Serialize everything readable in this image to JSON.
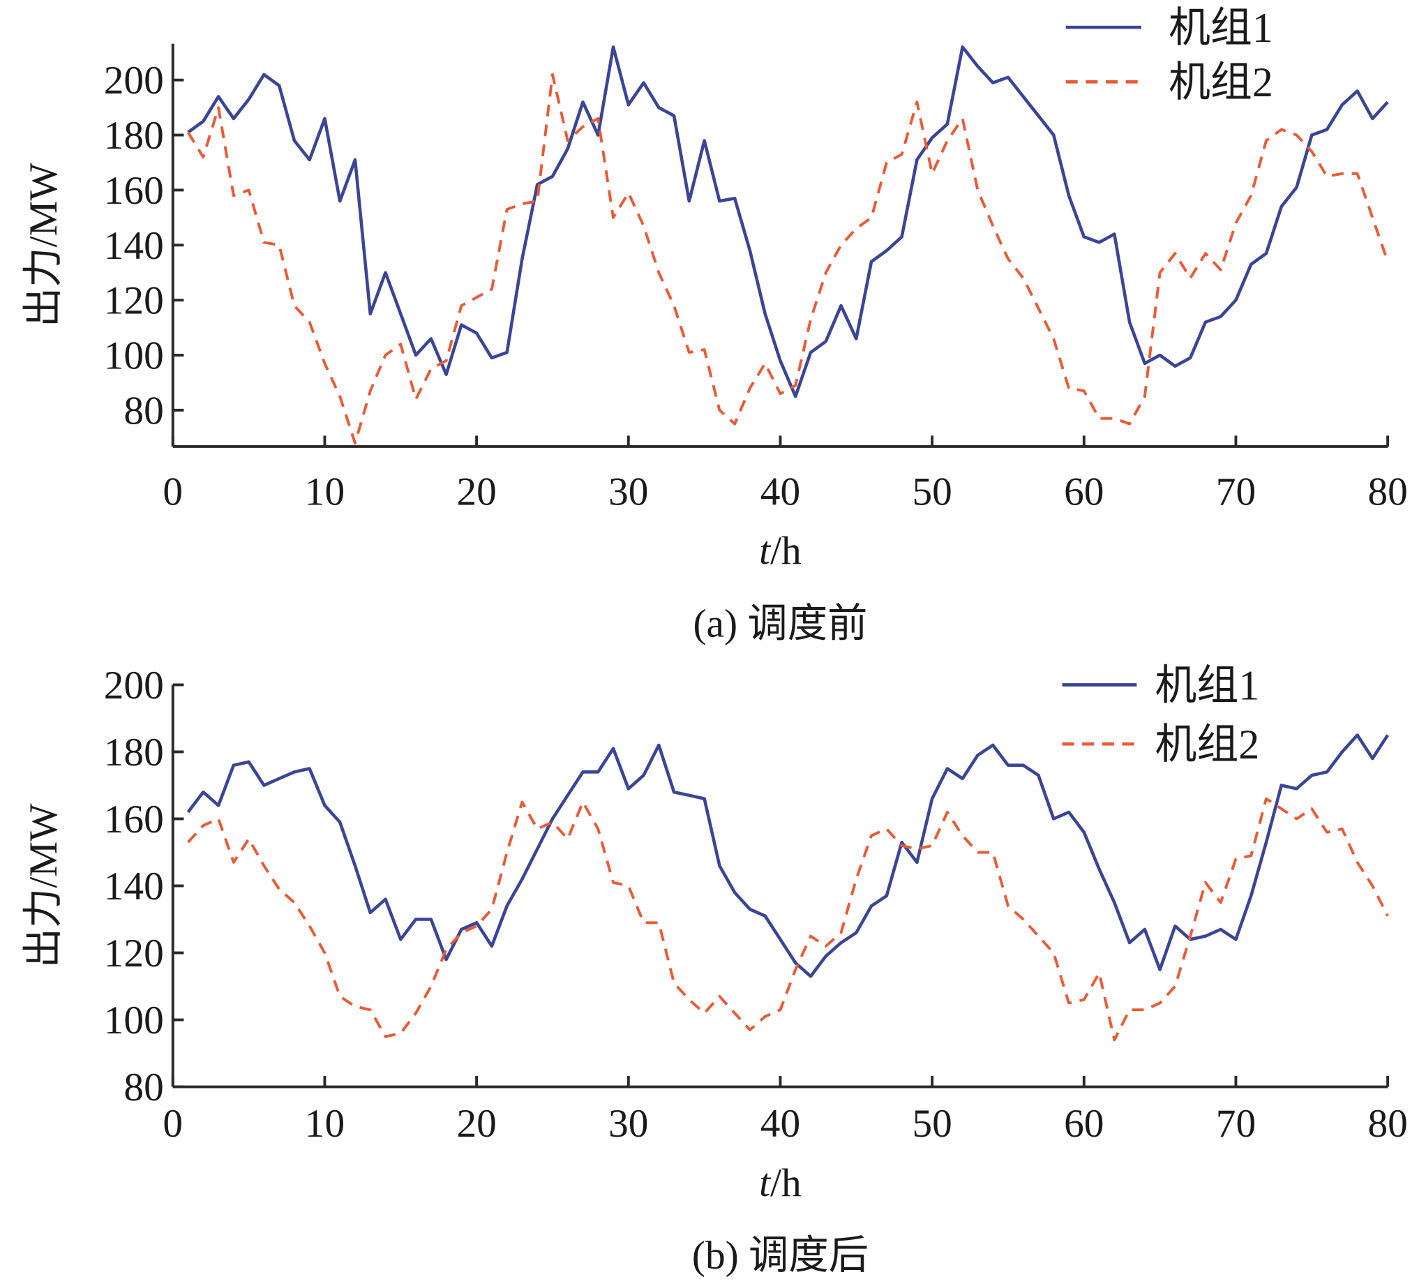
{
  "colors": {
    "unit1": "#3a4597",
    "unit2": "#ea5a35",
    "axis": "#2a2a2a"
  },
  "chart_data": [
    {
      "type": "line",
      "caption": "(a) 调度前",
      "xlabel_var": "t",
      "xlabel_unit": "/h",
      "ylabel": "出力/MW",
      "xlim": [
        0,
        80
      ],
      "ylim": [
        67,
        213
      ],
      "xticks": [
        0,
        10,
        20,
        30,
        40,
        50,
        60,
        70,
        80
      ],
      "yticks": [
        80,
        100,
        120,
        140,
        160,
        180,
        200
      ],
      "legend_position": "top-right",
      "grid": false,
      "x": [
        1,
        2,
        3,
        4,
        5,
        6,
        7,
        8,
        9,
        10,
        11,
        12,
        13,
        14,
        15,
        16,
        17,
        18,
        19,
        20,
        21,
        22,
        23,
        24,
        25,
        26,
        27,
        28,
        29,
        30,
        31,
        32,
        33,
        34,
        35,
        36,
        37,
        38,
        39,
        40,
        41,
        42,
        43,
        44,
        45,
        46,
        47,
        48,
        49,
        50,
        51,
        52,
        53,
        54,
        55,
        56,
        57,
        58,
        59,
        60,
        61,
        62,
        63,
        64,
        65,
        66,
        67,
        68,
        69,
        70,
        71,
        72,
        73,
        74,
        75,
        76,
        77,
        78,
        79,
        80
      ],
      "series": [
        {
          "name": "机组1",
          "style": "solid",
          "values": [
            181,
            185,
            194,
            186,
            193,
            202,
            198,
            178,
            171,
            186,
            156,
            171,
            115,
            130,
            115,
            100,
            106,
            93,
            111,
            108,
            99,
            101,
            135,
            162,
            165,
            175,
            192,
            180,
            212,
            191,
            199,
            190,
            187,
            156,
            178,
            156,
            157,
            138,
            115,
            98,
            85,
            101,
            105,
            118,
            106,
            134,
            138,
            143,
            171,
            179,
            184,
            212,
            205,
            199,
            201,
            194,
            187,
            180,
            158,
            143,
            141,
            144,
            112,
            97,
            100,
            96,
            99,
            112,
            114,
            120,
            133,
            137,
            154,
            161,
            180,
            182,
            191,
            196,
            186,
            192
          ]
        },
        {
          "name": "机组2",
          "style": "dashed",
          "values": [
            181,
            172,
            190,
            158,
            160,
            141,
            140,
            118,
            112,
            97,
            85,
            68,
            87,
            100,
            104,
            84,
            95,
            98,
            118,
            121,
            124,
            153,
            155,
            156,
            202,
            178,
            183,
            186,
            150,
            159,
            147,
            130,
            118,
            101,
            102,
            80,
            75,
            88,
            97,
            86,
            89,
            113,
            130,
            140,
            146,
            150,
            170,
            173,
            192,
            166,
            178,
            186,
            160,
            147,
            135,
            128,
            117,
            106,
            88,
            87,
            77,
            77,
            75,
            85,
            130,
            137,
            128,
            137,
            131,
            148,
            158,
            178,
            182,
            180,
            174,
            165,
            166,
            166,
            150,
            134
          ]
        }
      ]
    },
    {
      "type": "line",
      "caption": "(b) 调度后",
      "xlabel_var": "t",
      "xlabel_unit": "/h",
      "ylabel": "出力/MW",
      "xlim": [
        0,
        80
      ],
      "ylim": [
        80,
        200
      ],
      "xticks": [
        0,
        10,
        20,
        30,
        40,
        50,
        60,
        70,
        80
      ],
      "yticks": [
        80,
        100,
        120,
        140,
        160,
        180,
        200
      ],
      "legend_position": "top-right",
      "grid": false,
      "x": [
        1,
        2,
        3,
        4,
        5,
        6,
        7,
        8,
        9,
        10,
        11,
        12,
        13,
        14,
        15,
        16,
        17,
        18,
        19,
        20,
        21,
        22,
        23,
        24,
        25,
        26,
        27,
        28,
        29,
        30,
        31,
        32,
        33,
        34,
        35,
        36,
        37,
        38,
        39,
        40,
        41,
        42,
        43,
        44,
        45,
        46,
        47,
        48,
        49,
        50,
        51,
        52,
        53,
        54,
        55,
        56,
        57,
        58,
        59,
        60,
        61,
        62,
        63,
        64,
        65,
        66,
        67,
        68,
        69,
        70,
        71,
        72,
        73,
        74,
        75,
        76,
        77,
        78,
        79,
        80
      ],
      "series": [
        {
          "name": "机组1",
          "style": "solid",
          "values": [
            162,
            168,
            164,
            176,
            177,
            170,
            172,
            174,
            175,
            164,
            159,
            146,
            132,
            136,
            124,
            130,
            130,
            118,
            127,
            129,
            122,
            134,
            142,
            151,
            160,
            167,
            174,
            174,
            181,
            169,
            173,
            182,
            168,
            167,
            166,
            146,
            138,
            133,
            131,
            124,
            117,
            113,
            119,
            123,
            126,
            134,
            137,
            153,
            147,
            166,
            175,
            172,
            179,
            182,
            176,
            176,
            173,
            160,
            162,
            156,
            145,
            135,
            123,
            127,
            115,
            128,
            124,
            125,
            127,
            124,
            137,
            153,
            170,
            169,
            173,
            174,
            180,
            185,
            178,
            185
          ]
        },
        {
          "name": "机组2",
          "style": "dashed",
          "values": [
            153,
            158,
            160,
            147,
            154,
            146,
            139,
            135,
            128,
            120,
            107,
            104,
            103,
            95,
            96,
            102,
            110,
            121,
            126,
            128,
            133,
            150,
            165,
            157,
            159,
            154,
            165,
            157,
            141,
            140,
            129,
            129,
            111,
            106,
            102,
            107,
            102,
            97,
            101,
            103,
            115,
            125,
            122,
            126,
            142,
            155,
            157,
            152,
            151,
            152,
            162,
            155,
            150,
            150,
            134,
            130,
            125,
            120,
            105,
            106,
            114,
            94,
            103,
            103,
            105,
            110,
            125,
            141,
            135,
            148,
            149,
            166,
            163,
            160,
            163,
            156,
            157,
            147,
            140,
            131
          ]
        }
      ]
    }
  ]
}
